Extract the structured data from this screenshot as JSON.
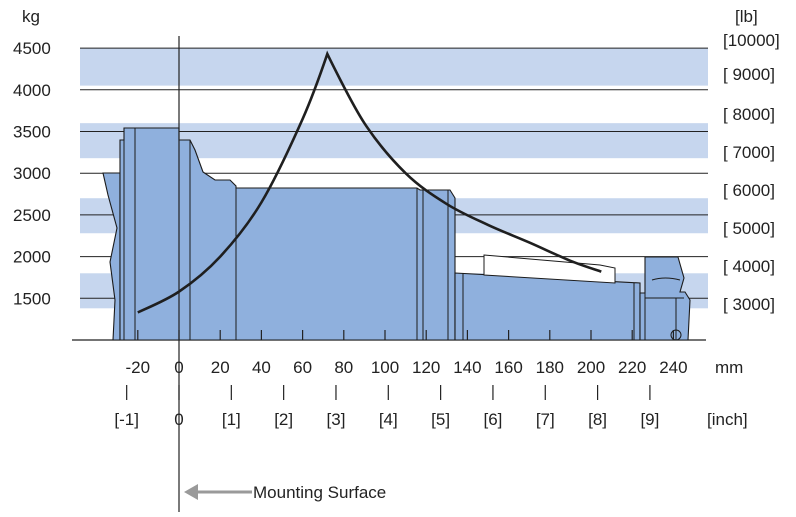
{
  "chart_data": {
    "type": "line",
    "ylabel": "kg",
    "ylabel_right": "[lb]",
    "xlabel": "mm",
    "xlabel_secondary": "[inch]",
    "annotation": "Mounting Surface",
    "y_ticks": [
      "4500",
      "4000",
      "3500",
      "3000",
      "2500",
      "2000",
      "1500"
    ],
    "y_ticks_right": [
      "[10000]",
      "[ 9000]",
      "[ 8000]",
      "[ 7000]",
      "[ 6000]",
      "[ 5000]",
      "[ 4000]",
      "[ 3000]"
    ],
    "x_ticks": [
      "-20",
      "0",
      "20",
      "40",
      "60",
      "80",
      "100",
      "120",
      "140",
      "160",
      "180",
      "200",
      "220",
      "240"
    ],
    "x_ticks_inch": [
      "[-1]",
      "0",
      "[1]",
      "[2]",
      "[3]",
      "[4]",
      "[5]",
      "[6]",
      "[7]",
      "[8]",
      "[9]"
    ],
    "series": [
      {
        "x": [
          -20,
          0,
          20,
          40,
          60,
          72,
          90,
          110,
          130,
          150,
          170,
          190,
          205
        ],
        "y": [
          1330,
          1580,
          2000,
          2650,
          3650,
          4430,
          3600,
          3000,
          2630,
          2380,
          2170,
          1950,
          1820
        ]
      }
    ],
    "ylim": [
      1000,
      4500
    ],
    "xlim": [
      -35,
      255
    ],
    "grid": true,
    "colors": {
      "band": "#c6d6ee",
      "body": "#8fb0dd",
      "curve": "#1f1f1f"
    }
  }
}
